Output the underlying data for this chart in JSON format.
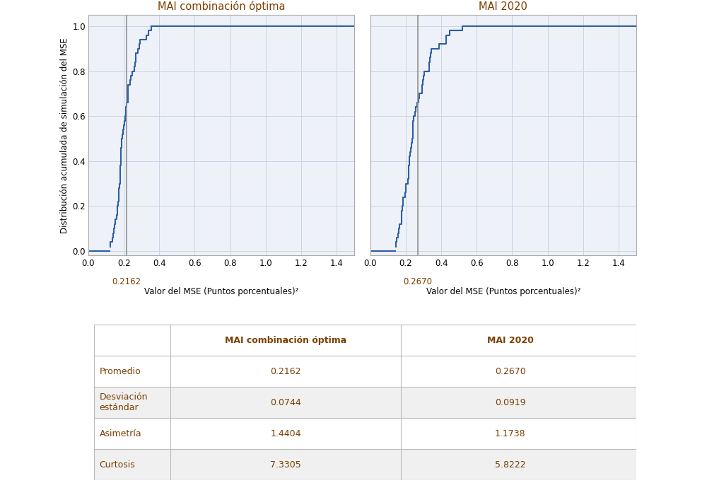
{
  "title1": "MAI combinación óptima",
  "title2": "MAI 2020",
  "ylabel": "Distribución acumulada de simulación del MSE",
  "xlabel": "Valor del MSE (Puntos porcentuales)²",
  "vline1": 0.2162,
  "vline2": 0.267,
  "xlim1": [
    0.0,
    1.5
  ],
  "xlim2": [
    0.0,
    1.5
  ],
  "ylim": [
    -0.02,
    1.05
  ],
  "xticks": [
    0.0,
    0.2,
    0.4,
    0.6,
    0.8,
    1.0,
    1.2,
    1.4
  ],
  "yticks": [
    0.0,
    0.2,
    0.4,
    0.6,
    0.8,
    1.0
  ],
  "line_color": "#2e5fa3",
  "vline_color": "#909090",
  "grid_color": "#c8d4e8",
  "title_color": "#7b3f00",
  "bg_color": "#eef2f8",
  "table_rows": [
    "Promedio",
    "Desviación\nestándar",
    "Asimetría",
    "Curtosis"
  ],
  "table_col1": [
    "0.2162",
    "0.0744",
    "1.4404",
    "7.3305"
  ],
  "table_col2": [
    "0.2670",
    "0.0919",
    "1.1738",
    "5.8222"
  ],
  "table_header1": "MAI combinación óptima",
  "table_header2": "MAI 2020",
  "table_text_color": "#7b3f00",
  "vline_label1": "0.2162",
  "vline_label2": "0.2670",
  "mean1": 0.2162,
  "std1": 0.0744,
  "mean2": 0.267,
  "std2": 0.0919
}
